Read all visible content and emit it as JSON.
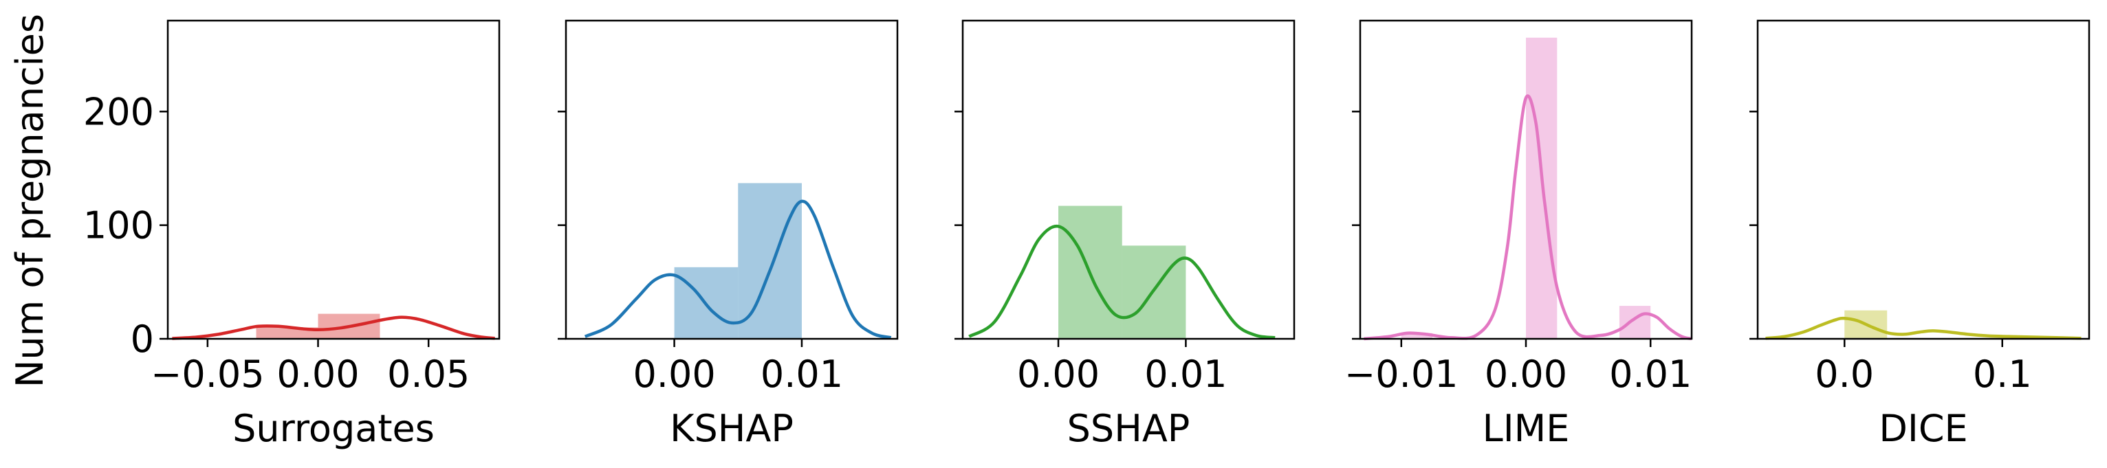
{
  "ylabel": "Num of pregnancies",
  "ylim": [
    0,
    280
  ],
  "yticks": [
    0,
    100,
    200
  ],
  "chart_data": [
    {
      "type": "bar",
      "xlabel": "Surrogates",
      "color": "#d62728",
      "xlim": [
        -0.068,
        0.082
      ],
      "xticks": [
        -0.05,
        0.0,
        0.05
      ],
      "xtick_labels": [
        "−0.05",
        "0.00",
        "0.05"
      ],
      "bins": [
        {
          "x0": -0.028,
          "x1": 0.0,
          "count": 10
        },
        {
          "x0": 0.0,
          "x1": 0.028,
          "count": 22
        }
      ],
      "kde": {
        "x": [
          -0.066,
          -0.055,
          -0.045,
          -0.035,
          -0.027,
          -0.018,
          -0.008,
          0.0,
          0.01,
          0.02,
          0.03,
          0.038,
          0.046,
          0.056,
          0.066,
          0.074,
          0.08
        ],
        "y": [
          0.3,
          1.5,
          4,
          8,
          11,
          11,
          9,
          8,
          9.5,
          13,
          17,
          19,
          17,
          11,
          4.5,
          1.5,
          0.4
        ]
      }
    },
    {
      "type": "bar",
      "xlabel": "KSHAP",
      "color": "#1f77b4",
      "xlim": [
        -0.0085,
        0.0175
      ],
      "xticks": [
        0.0,
        0.01
      ],
      "xtick_labels": [
        "0.00",
        "0.01"
      ],
      "bins": [
        {
          "x0": 0.0,
          "x1": 0.005,
          "count": 63
        },
        {
          "x0": 0.005,
          "x1": 0.01,
          "count": 137
        }
      ],
      "kde": {
        "x": [
          -0.007,
          -0.005,
          -0.003,
          -0.0015,
          0.0,
          0.0015,
          0.003,
          0.0045,
          0.006,
          0.0075,
          0.009,
          0.01,
          0.011,
          0.0125,
          0.014,
          0.0155,
          0.017
        ],
        "y": [
          2,
          12,
          35,
          52,
          56,
          44,
          24,
          14,
          22,
          60,
          105,
          121,
          108,
          62,
          20,
          5,
          1
        ]
      }
    },
    {
      "type": "bar",
      "xlabel": "SSHAP",
      "color": "#2ca02c",
      "xlim": [
        -0.0075,
        0.0185
      ],
      "xticks": [
        0.0,
        0.01
      ],
      "xtick_labels": [
        "0.00",
        "0.01"
      ],
      "bins": [
        {
          "x0": 0.0,
          "x1": 0.005,
          "count": 117
        },
        {
          "x0": 0.005,
          "x1": 0.01,
          "count": 82
        }
      ],
      "kde": {
        "x": [
          -0.007,
          -0.005,
          -0.003,
          -0.0015,
          0.0,
          0.0015,
          0.003,
          0.0045,
          0.006,
          0.0075,
          0.009,
          0.01,
          0.011,
          0.0125,
          0.014,
          0.0155,
          0.017
        ],
        "y": [
          2,
          15,
          55,
          88,
          99,
          82,
          45,
          21,
          22,
          43,
          65,
          71,
          62,
          35,
          12,
          3,
          1
        ]
      }
    },
    {
      "type": "bar",
      "xlabel": "LIME",
      "color": "#e377c2",
      "xlim": [
        -0.0133,
        0.0133
      ],
      "xticks": [
        -0.01,
        0.0,
        0.01
      ],
      "xtick_labels": [
        "−0.01",
        "0.00",
        "0.01"
      ],
      "bins": [
        {
          "x0": -0.01,
          "x1": -0.0075,
          "count": 5
        },
        {
          "x0": 0.0,
          "x1": 0.0025,
          "count": 265
        },
        {
          "x0": 0.0075,
          "x1": 0.01,
          "count": 29
        }
      ],
      "kde": {
        "x": [
          -0.013,
          -0.011,
          -0.0095,
          -0.008,
          -0.006,
          -0.004,
          -0.0025,
          -0.0015,
          -0.0008,
          0.0,
          0.0008,
          0.0015,
          0.0025,
          0.004,
          0.006,
          0.0075,
          0.0085,
          0.0095,
          0.0105,
          0.0115,
          0.0125,
          0.0133
        ],
        "y": [
          0,
          2,
          5,
          4,
          1,
          3,
          25,
          80,
          150,
          212,
          190,
          120,
          45,
          6,
          3,
          8,
          16,
          22,
          19,
          9,
          2,
          0
        ]
      }
    },
    {
      "type": "bar",
      "xlabel": "DICE",
      "color": "#bcbd22",
      "xlim": [
        -0.055,
        0.155
      ],
      "xticks": [
        0.0,
        0.1
      ],
      "xtick_labels": [
        "0.0",
        "0.1"
      ],
      "bins": [
        {
          "x0": 0.0,
          "x1": 0.027,
          "count": 25
        }
      ],
      "kde": {
        "x": [
          -0.05,
          -0.038,
          -0.026,
          -0.015,
          -0.005,
          0.0,
          0.008,
          0.018,
          0.028,
          0.038,
          0.048,
          0.056,
          0.066,
          0.078,
          0.092,
          0.106,
          0.12,
          0.134,
          0.15
        ],
        "y": [
          0.5,
          2,
          6,
          12,
          17,
          18,
          16,
          10,
          5,
          4,
          6,
          7,
          6,
          4,
          2.5,
          2,
          1.5,
          1,
          0.5
        ]
      }
    }
  ]
}
